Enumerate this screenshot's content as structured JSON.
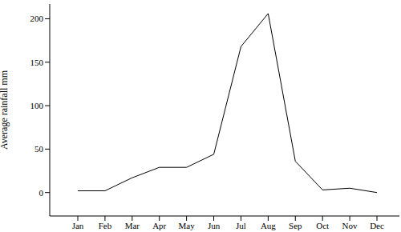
{
  "chart_data": {
    "type": "line",
    "y_label": "Average rainfall mm",
    "categories": [
      "Jan",
      "Feb",
      "Mar",
      "Apr",
      "May",
      "Jun",
      "Jul",
      "Aug",
      "Sep",
      "Oct",
      "Nov",
      "Dec"
    ],
    "values": [
      2,
      2,
      17,
      29,
      29,
      44,
      168,
      206,
      36,
      3,
      5,
      0
    ],
    "color": "#000000",
    "ylim": [
      -27,
      217
    ],
    "yticks": [
      0,
      50,
      100,
      150,
      200
    ],
    "grid": false
  }
}
